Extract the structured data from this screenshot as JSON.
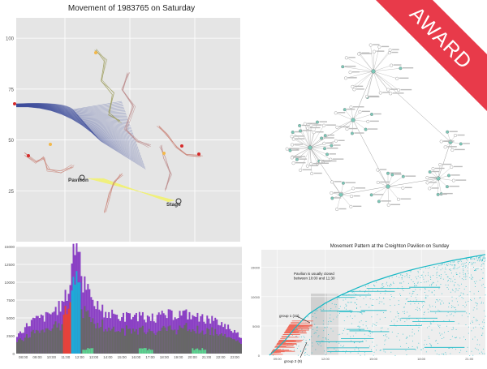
{
  "colors": {
    "panel_bg": "#e5e5e5",
    "grid": "#ffffff",
    "ribbon_blue": "#3b4a9a",
    "ribbon_yellow": "#f0f07a",
    "ribbon_red": "#c74a4a",
    "node": "#7bc8b8",
    "bar_purple": "#8a3fc4",
    "bar_gray": "#676767",
    "bar_red": "#e8413a",
    "bar_cyan": "#1fa9d8",
    "bar_green": "#5bd88f",
    "curve": "#16b8c5",
    "sample_red": "#ef6b5b",
    "award_bg": "#e83a4a",
    "award_text": "#ffffff"
  },
  "award": {
    "label": "AWARD"
  },
  "panels": {
    "movement": {
      "title": "Movement of 1983765 on Saturday",
      "ylim": [
        0,
        100
      ],
      "y_ticks": [
        "100",
        "75",
        "50",
        "25"
      ],
      "labels": {
        "pavilion": "Pavilion",
        "stage": "Stage"
      }
    },
    "network": {
      "description_free": true
    },
    "histogram": {
      "y_ticks": [
        "15000",
        "12500",
        "10000",
        "7500",
        "5000",
        "2500",
        "0"
      ],
      "x_ticks": [
        "08:00",
        "09:00",
        "10:00",
        "11:00",
        "12:00",
        "13:00",
        "14:00",
        "15:00",
        "16:00",
        "17:00",
        "18:00",
        "19:00",
        "20:00",
        "21:00",
        "22:00",
        "23:00"
      ]
    },
    "pattern": {
      "title": "Movement Pattern at the Creighton Pavilion on Sunday",
      "y_ticks": [
        "15000",
        "10000",
        "5000",
        "0"
      ],
      "x_ticks": [
        "09:00",
        "12:00",
        "15:00",
        "18:00",
        "21:00"
      ],
      "note": "Pavilion is usually closed between 10:00 and 11:30",
      "group1": "group 1 (32)",
      "group2": "group 2 (9)"
    }
  },
  "chart_data": [
    {
      "type": "line",
      "title": "Movement of 1983765 on Saturday",
      "ylim": [
        0,
        100
      ],
      "y_ticks": [
        25,
        50,
        75,
        100
      ],
      "annotations": [
        "Pavilion",
        "Stage"
      ]
    },
    {
      "type": "bar",
      "categories": [
        "08:00",
        "09:00",
        "10:00",
        "11:00",
        "12:00",
        "13:00",
        "14:00",
        "15:00",
        "16:00",
        "17:00",
        "18:00",
        "19:00",
        "20:00",
        "21:00",
        "22:00",
        "23:00"
      ],
      "ylim": [
        0,
        15000
      ],
      "series": [
        {
          "values": [
            2500,
            4600,
            5200,
            6800,
            11800,
            7200,
            5600,
            5100,
            5300,
            5000,
            5400,
            5600,
            5200,
            4700,
            3800,
            2200
          ]
        }
      ]
    },
    {
      "type": "scatter",
      "title": "Movement Pattern at the Creighton Pavilion on Sunday",
      "ylim": [
        0,
        18000
      ],
      "x_ticks": [
        "09:00",
        "12:00",
        "15:00",
        "18:00",
        "21:00"
      ],
      "curve_x": [
        8.5,
        9.0,
        9.5,
        10.0,
        10.5,
        11.0,
        12.0,
        13.0,
        14.0,
        15.0,
        16.0,
        17.0,
        18.0,
        19.0,
        20.0,
        21.0,
        22.0
      ],
      "curve_y": [
        0,
        1200,
        2600,
        4300,
        5800,
        7100,
        8900,
        10300,
        11500,
        12600,
        13500,
        14300,
        15000,
        15600,
        16200,
        16700,
        17200
      ],
      "annotations": [
        "Pavilion is usually closed between 10:00 and 11:30",
        "group 1 (32)",
        "group 2 (9)"
      ]
    }
  ]
}
